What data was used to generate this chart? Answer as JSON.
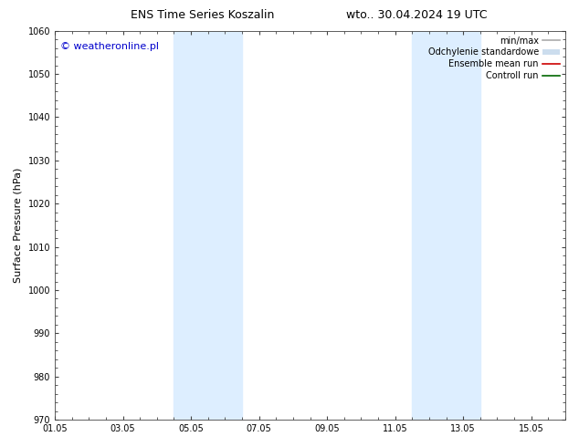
{
  "title_left": "ENS Time Series Koszalin",
  "title_right": "wto.. 30.04.2024 19 UTC",
  "ylabel": "Surface Pressure (hPa)",
  "ylim": [
    970,
    1060
  ],
  "yticks": [
    970,
    980,
    990,
    1000,
    1010,
    1020,
    1030,
    1040,
    1050,
    1060
  ],
  "xlim_start": 0.0,
  "xlim_end": 15.0,
  "xtick_positions": [
    0,
    2,
    4,
    6,
    8,
    10,
    12,
    14
  ],
  "xtick_labels": [
    "01.05",
    "03.05",
    "05.05",
    "07.05",
    "09.05",
    "11.05",
    "13.05",
    "15.05"
  ],
  "shaded_bands": [
    {
      "x_start": 3.5,
      "x_end": 5.5
    },
    {
      "x_start": 10.5,
      "x_end": 12.5
    }
  ],
  "shade_color": "#ddeeff",
  "watermark_text": "© weatheronline.pl",
  "watermark_color": "#0000cc",
  "background_color": "#ffffff",
  "plot_bg_color": "#ffffff",
  "legend_items": [
    {
      "label": "min/max",
      "color": "#aaaaaa",
      "lw": 1.2,
      "type": "line"
    },
    {
      "label": "Odchylenie standardowe",
      "color": "#ccddee",
      "lw": 7,
      "type": "band"
    },
    {
      "label": "Ensemble mean run",
      "color": "#cc0000",
      "lw": 1.2,
      "type": "line"
    },
    {
      "label": "Controll run",
      "color": "#006600",
      "lw": 1.2,
      "type": "line"
    }
  ],
  "title_fontsize": 9,
  "axis_label_fontsize": 8,
  "tick_fontsize": 7,
  "watermark_fontsize": 8,
  "legend_fontsize": 7
}
